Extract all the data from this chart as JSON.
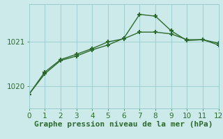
{
  "line1_x": [
    0,
    1,
    2,
    3,
    4,
    5,
    6,
    7,
    8,
    9,
    10,
    11,
    12
  ],
  "line1_y": [
    1019.82,
    1020.28,
    1020.58,
    1020.68,
    1020.82,
    1020.93,
    1021.08,
    1021.62,
    1021.58,
    1021.25,
    1021.03,
    1021.05,
    1020.93
  ],
  "line2_x": [
    0,
    1,
    2,
    3,
    4,
    5,
    6,
    7,
    8,
    9,
    10,
    11,
    12
  ],
  "line2_y": [
    1019.82,
    1020.32,
    1020.6,
    1020.72,
    1020.85,
    1021.0,
    1021.07,
    1021.22,
    1021.22,
    1021.18,
    1021.05,
    1021.05,
    1020.97
  ],
  "line_color": "#2d6a2d",
  "bg_color": "#cceaea",
  "grid_color": "#99cccc",
  "xlabel": "Graphe pression niveau de la mer (hPa)",
  "xlim": [
    0,
    12
  ],
  "ylim": [
    1019.5,
    1021.85
  ],
  "yticks": [
    1020,
    1021
  ],
  "xticks": [
    0,
    1,
    2,
    3,
    4,
    5,
    6,
    7,
    8,
    9,
    10,
    11,
    12
  ],
  "marker": "+",
  "markersize": 5,
  "markeredgewidth": 1.5,
  "linewidth": 1.0,
  "xlabel_fontsize": 8,
  "tick_fontsize": 7.5
}
